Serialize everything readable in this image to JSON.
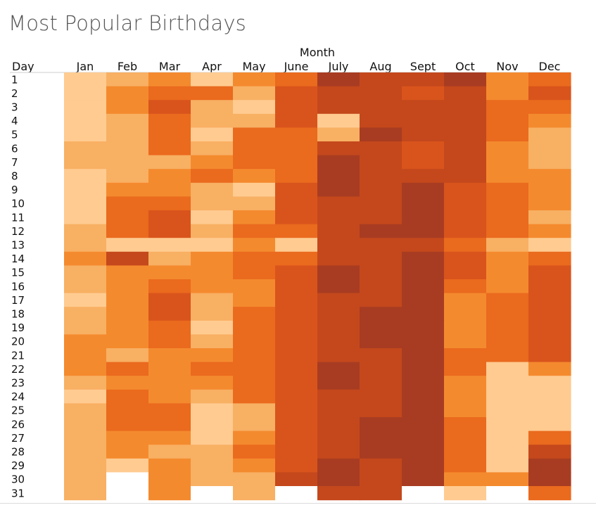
{
  "title": "Most Popular Birthdays",
  "colors": {
    "scale": [
      "#ffcb91",
      "#f8b063",
      "#f48a2e",
      "#ea6a1e",
      "#d9541c",
      "#c4481c",
      "#a83c22"
    ],
    "missing": "#ffffff"
  },
  "chart_data": {
    "type": "heatmap",
    "title": "Most Popular Birthdays",
    "x_title": "Month",
    "y_title": "Day",
    "x_categories": [
      "Jan",
      "Feb",
      "Mar",
      "Apr",
      "May",
      "June",
      "July",
      "Aug",
      "Sept",
      "Oct",
      "Nov",
      "Dec"
    ],
    "y_categories": [
      "1",
      "2",
      "3",
      "4",
      "5",
      "6",
      "7",
      "8",
      "9",
      "10",
      "11",
      "12",
      "13",
      "14",
      "15",
      "16",
      "17",
      "18",
      "19",
      "20",
      "21",
      "22",
      "23",
      "24",
      "25",
      "26",
      "27",
      "28",
      "29",
      "30",
      "31"
    ],
    "value_scale": "relative popularity level, 0 (least) to 6 (most)",
    "values": [
      [
        0,
        1,
        2,
        0,
        2,
        3,
        6,
        5,
        5,
        6,
        2,
        3
      ],
      [
        0,
        2,
        3,
        3,
        1,
        4,
        5,
        5,
        4,
        5,
        2,
        4
      ],
      [
        0,
        2,
        4,
        1,
        0,
        4,
        5,
        5,
        5,
        5,
        3,
        3
      ],
      [
        0,
        1,
        3,
        1,
        1,
        4,
        0,
        5,
        5,
        5,
        3,
        2
      ],
      [
        0,
        1,
        3,
        0,
        3,
        3,
        1,
        6,
        5,
        5,
        3,
        1
      ],
      [
        1,
        1,
        3,
        1,
        3,
        3,
        5,
        5,
        4,
        5,
        2,
        1
      ],
      [
        1,
        1,
        1,
        2,
        3,
        3,
        6,
        5,
        4,
        5,
        2,
        1
      ],
      [
        0,
        1,
        2,
        3,
        2,
        3,
        6,
        5,
        5,
        5,
        2,
        2
      ],
      [
        0,
        2,
        2,
        1,
        0,
        4,
        6,
        5,
        6,
        4,
        3,
        2
      ],
      [
        0,
        3,
        3,
        1,
        1,
        4,
        5,
        5,
        6,
        4,
        3,
        2
      ],
      [
        0,
        3,
        4,
        0,
        2,
        4,
        5,
        5,
        6,
        4,
        3,
        1
      ],
      [
        1,
        3,
        4,
        1,
        3,
        3,
        5,
        6,
        6,
        4,
        3,
        2
      ],
      [
        1,
        0,
        0,
        0,
        2,
        0,
        5,
        5,
        5,
        3,
        1,
        0
      ],
      [
        2,
        5,
        1,
        2,
        3,
        3,
        5,
        5,
        6,
        4,
        2,
        3
      ],
      [
        1,
        2,
        2,
        2,
        3,
        4,
        6,
        5,
        6,
        4,
        2,
        4
      ],
      [
        1,
        2,
        3,
        2,
        2,
        4,
        6,
        5,
        6,
        3,
        2,
        4
      ],
      [
        0,
        2,
        4,
        1,
        2,
        4,
        5,
        5,
        6,
        2,
        3,
        4
      ],
      [
        1,
        2,
        4,
        1,
        3,
        4,
        5,
        6,
        6,
        2,
        3,
        4
      ],
      [
        1,
        2,
        3,
        0,
        3,
        4,
        5,
        6,
        6,
        2,
        3,
        4
      ],
      [
        2,
        2,
        3,
        1,
        3,
        4,
        5,
        6,
        6,
        2,
        3,
        4
      ],
      [
        2,
        1,
        2,
        2,
        3,
        4,
        5,
        5,
        6,
        3,
        3,
        4
      ],
      [
        2,
        3,
        2,
        3,
        3,
        4,
        6,
        5,
        6,
        3,
        0,
        2
      ],
      [
        1,
        2,
        2,
        2,
        3,
        4,
        6,
        5,
        6,
        2,
        0,
        0
      ],
      [
        0,
        3,
        2,
        1,
        3,
        4,
        5,
        5,
        6,
        2,
        0,
        0
      ],
      [
        1,
        3,
        3,
        0,
        1,
        4,
        5,
        5,
        6,
        2,
        0,
        0
      ],
      [
        1,
        3,
        3,
        0,
        1,
        4,
        5,
        6,
        6,
        3,
        0,
        0
      ],
      [
        1,
        2,
        2,
        0,
        2,
        4,
        5,
        6,
        6,
        3,
        0,
        3
      ],
      [
        1,
        2,
        1,
        1,
        3,
        4,
        5,
        6,
        6,
        3,
        0,
        5
      ],
      [
        1,
        0,
        2,
        1,
        2,
        4,
        6,
        5,
        6,
        3,
        0,
        6
      ],
      [
        1,
        null,
        2,
        1,
        1,
        5,
        6,
        5,
        6,
        2,
        2,
        6
      ],
      [
        1,
        null,
        2,
        null,
        1,
        null,
        5,
        5,
        null,
        0,
        null,
        3
      ]
    ]
  }
}
